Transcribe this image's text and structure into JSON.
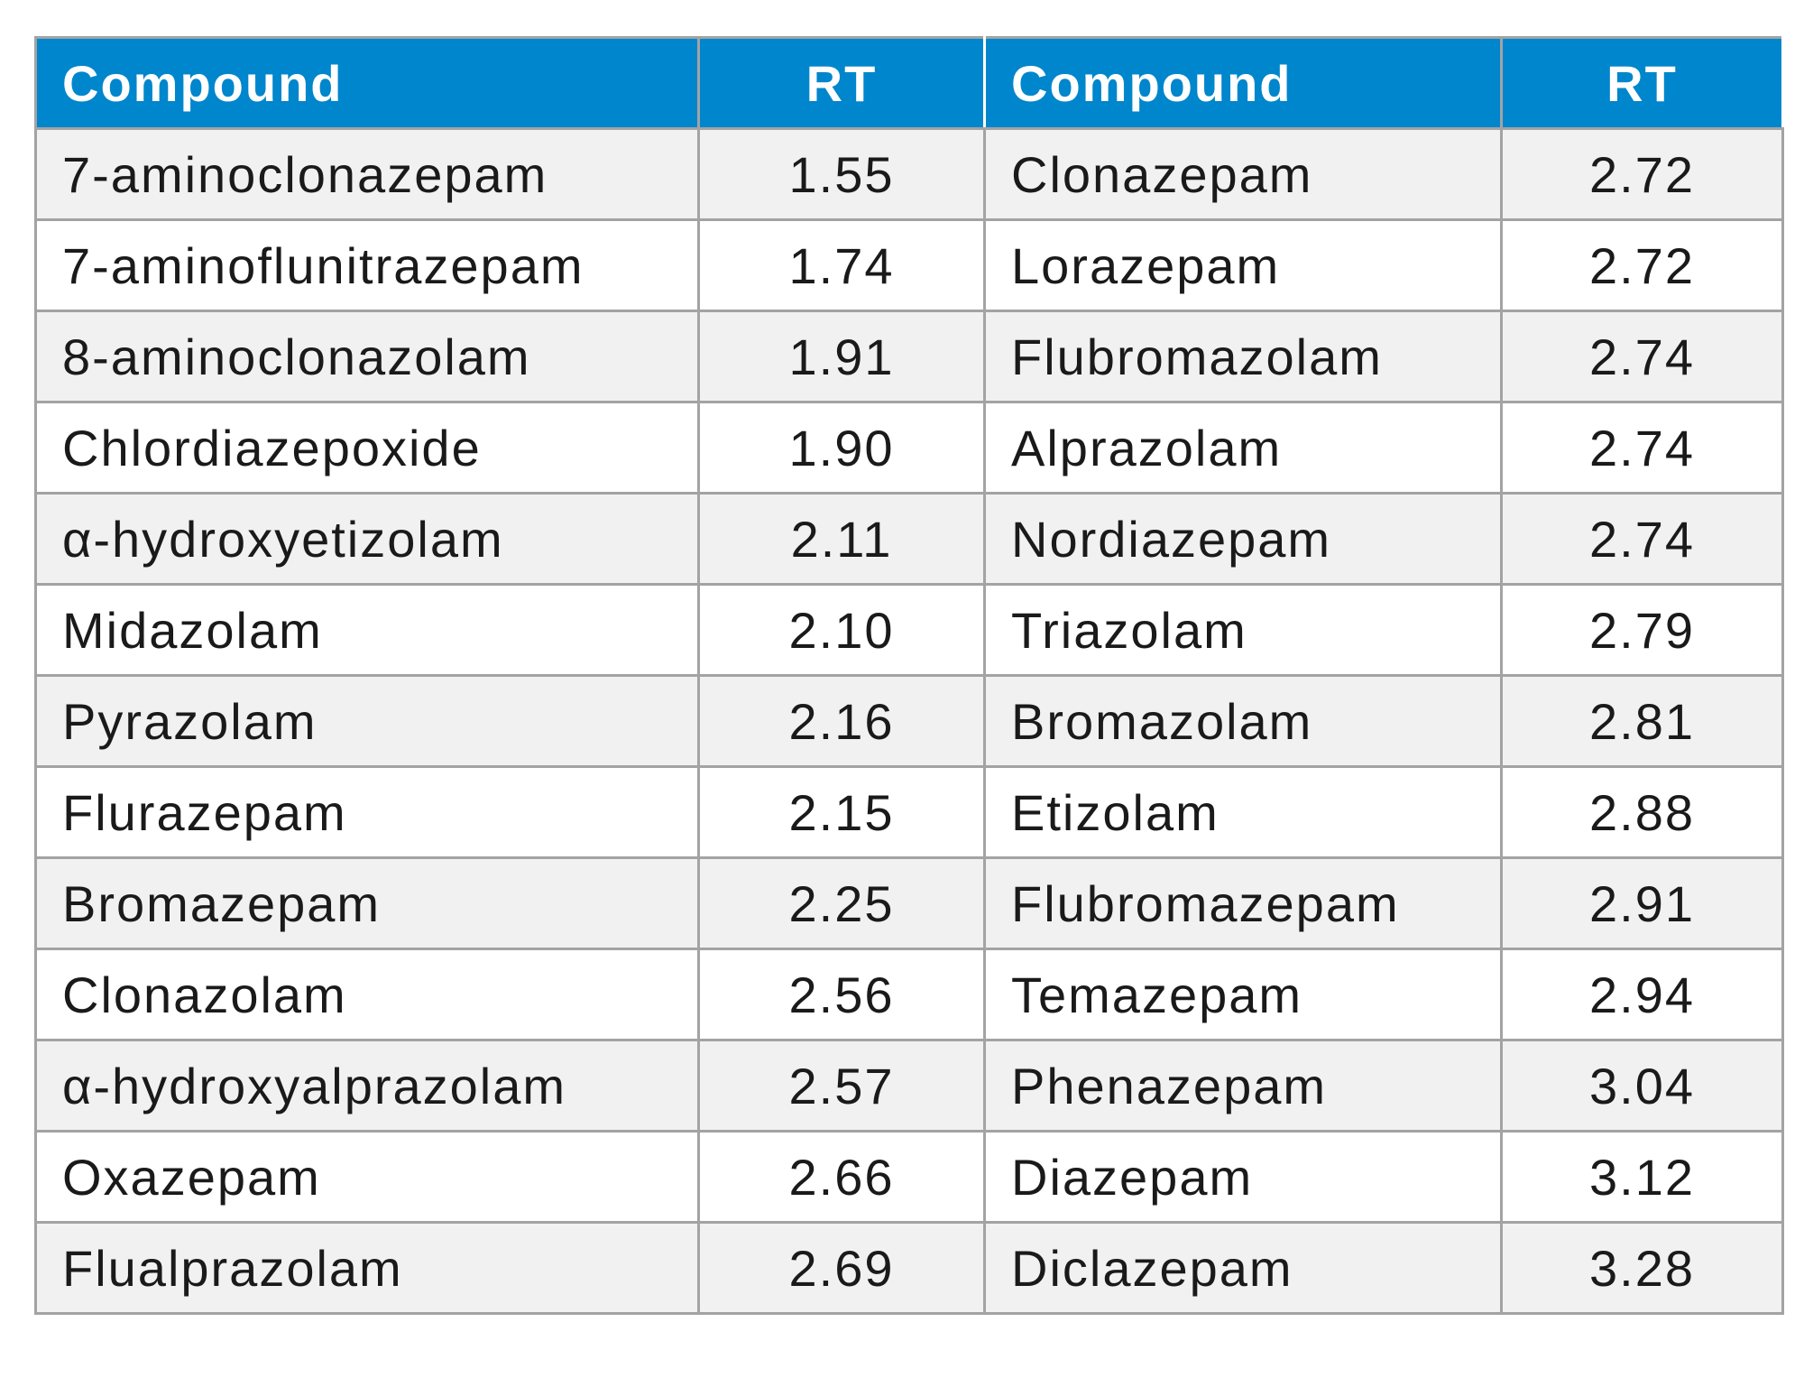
{
  "table": {
    "headers": [
      "Compound",
      "RT",
      "Compound",
      "RT"
    ],
    "rows": [
      [
        "7-aminoclonazepam",
        "1.55",
        "Clonazepam",
        "2.72"
      ],
      [
        "7-aminoflunitrazepam",
        "1.74",
        "Lorazepam",
        "2.72"
      ],
      [
        "8-aminoclonazolam",
        "1.91",
        "Flubromazolam",
        "2.74"
      ],
      [
        "Chlordiazepoxide",
        "1.90",
        "Alprazolam",
        "2.74"
      ],
      [
        "α-hydroxyetizolam",
        "2.11",
        "Nordiazepam",
        "2.74"
      ],
      [
        "Midazolam",
        "2.10",
        "Triazolam",
        "2.79"
      ],
      [
        "Pyrazolam",
        "2.16",
        "Bromazolam",
        "2.81"
      ],
      [
        "Flurazepam",
        "2.15",
        "Etizolam",
        "2.88"
      ],
      [
        "Bromazepam",
        "2.25",
        "Flubromazepam",
        "2.91"
      ],
      [
        "Clonazolam",
        "2.56",
        "Temazepam",
        "2.94"
      ],
      [
        "α-hydroxyalprazolam",
        "2.57",
        "Phenazepam",
        "3.04"
      ],
      [
        "Oxazepam",
        "2.66",
        "Diazepam",
        "3.12"
      ],
      [
        "Flualprazolam",
        "2.69",
        "Diclazepam",
        "3.28"
      ]
    ]
  },
  "colors": {
    "header_background": "#0086cc",
    "header_text": "#ffffff",
    "row_alt_background": "#f1f1f2",
    "border": "#a3a3a3"
  }
}
